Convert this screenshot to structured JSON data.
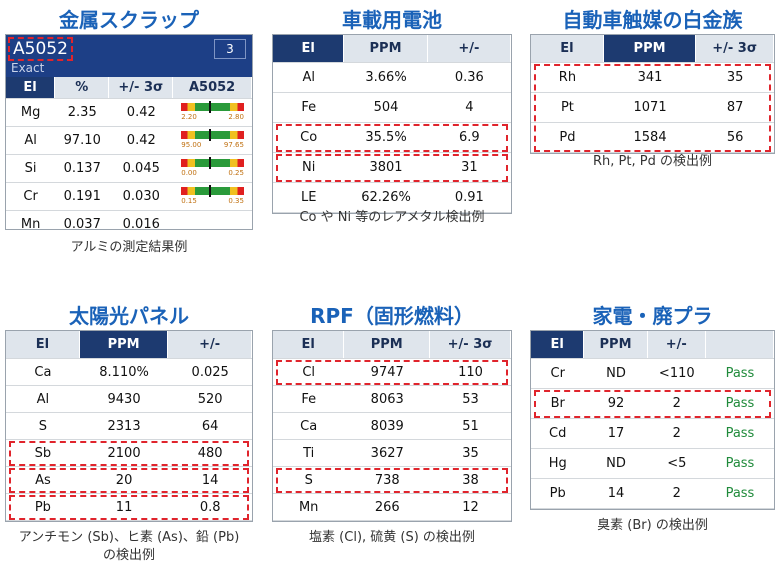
{
  "panels": [
    {
      "title": "金属スクラップ",
      "header": {
        "title": "A5052",
        "tag": "3",
        "sub": "Exact"
      },
      "columns": [
        "El",
        "%",
        "+/- 3σ",
        "A5052"
      ],
      "rows": [
        [
          "Mg",
          "2.35",
          "0.42"
        ],
        [
          "Al",
          "97.10",
          "0.42"
        ],
        [
          "Si",
          "0.137",
          "0.045"
        ],
        [
          "Cr",
          "0.191",
          "0.030"
        ],
        [
          "Mn",
          "0.037",
          "0.016"
        ]
      ],
      "ranges": [
        [
          "2.20",
          "2.80"
        ],
        [
          "95.00",
          "97.65"
        ],
        [
          "0.00",
          "0.25"
        ],
        [
          "0.15",
          "0.35"
        ]
      ],
      "caption": [
        "アルミの測定結果例"
      ]
    },
    {
      "title": "車載用電池",
      "columns": [
        "El",
        "PPM",
        "+/-"
      ],
      "rows": [
        [
          "Al",
          "3.66%",
          "0.36"
        ],
        [
          "Fe",
          "504",
          "4"
        ],
        [
          "Co",
          "35.5%",
          "6.9"
        ],
        [
          "Ni",
          "3801",
          "31"
        ],
        [
          "LE",
          "62.26%",
          "0.91"
        ]
      ],
      "caption": [
        "Co や Ni 等のレアメタル検出例"
      ]
    },
    {
      "title": "自動車触媒の白金族",
      "columns": [
        "El",
        "PPM",
        "+/- 3σ"
      ],
      "rows": [
        [
          "Rh",
          "341",
          "35"
        ],
        [
          "Pt",
          "1071",
          "87"
        ],
        [
          "Pd",
          "1584",
          "56"
        ]
      ],
      "caption": [
        "Rh, Pt, Pd の検出例"
      ]
    },
    {
      "title": "太陽光パネル",
      "columns": [
        "El",
        "PPM",
        "+/-"
      ],
      "rows": [
        [
          "Ca",
          "8.110%",
          "0.025"
        ],
        [
          "Al",
          "9430",
          "520"
        ],
        [
          "S",
          "2313",
          "64"
        ],
        [
          "Sb",
          "2100",
          "480"
        ],
        [
          "As",
          "20",
          "14"
        ],
        [
          "Pb",
          "11",
          "0.8"
        ]
      ],
      "caption": [
        "アンチモン (Sb)、ヒ素 (As)、鉛 (Pb)",
        "の検出例"
      ]
    },
    {
      "title": "RPF（固形燃料）",
      "columns": [
        "El",
        "PPM",
        "+/- 3σ"
      ],
      "rows": [
        [
          "Cl",
          "9747",
          "110"
        ],
        [
          "Fe",
          "8063",
          "53"
        ],
        [
          "Ca",
          "8039",
          "51"
        ],
        [
          "Ti",
          "3627",
          "35"
        ],
        [
          "S",
          "738",
          "38"
        ],
        [
          "Mn",
          "266",
          "12"
        ]
      ],
      "caption": [
        "塩素 (Cl), 硫黄 (S) の検出例"
      ]
    },
    {
      "title": "家電・廃プラ",
      "columns": [
        "El",
        "PPM",
        "+/-"
      ],
      "rows": [
        [
          "Cr",
          "ND",
          "<110",
          "Pass"
        ],
        [
          "Br",
          "92",
          "2",
          "Pass"
        ],
        [
          "Cd",
          "17",
          "2",
          "Pass"
        ],
        [
          "Hg",
          "ND",
          "<5",
          "Pass"
        ],
        [
          "Pb",
          "14",
          "2",
          "Pass"
        ]
      ],
      "caption": [
        "臭素 (Br) の検出例"
      ]
    }
  ]
}
